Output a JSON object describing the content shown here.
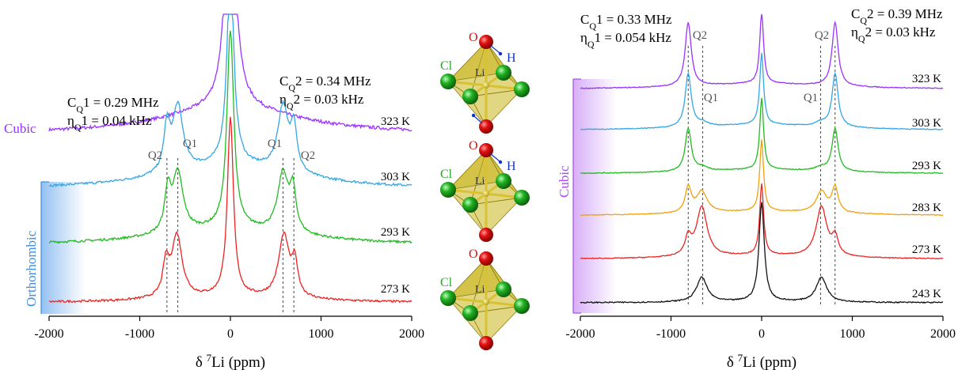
{
  "colors": {
    "323 K": "#9933ff",
    "303 K": "#33a6e6",
    "293 K": "#22bb22",
    "283 K": "#f2a10d",
    "273 K": "#ee2222",
    "243 K": "#111111",
    "orthorhombic": "#3c8ee6",
    "cubic": "#a64df0",
    "atom_O": "#dd1111",
    "atom_Cl": "#22aa22",
    "atom_H": "#1133cc"
  },
  "chart_data": [
    {
      "type": "line",
      "xlabel": "δ ⁷Li (ppm)",
      "xlim": [
        -2000,
        2000
      ],
      "xticks": [
        "-2000",
        "-1000",
        "0",
        "1000",
        "2000"
      ],
      "annotations": {
        "cq1": "CQ1 = 0.29 MHz",
        "eta1": "ηQ1 = 0.04 kHz",
        "cq2": "CQ2 = 0.34 MHz",
        "eta2": "ηQ2 = 0.03 kHz",
        "phase_cubic": "Cubic",
        "phase_ortho": "Orthorhombic",
        "q2_left": "Q2",
        "q1_left": "Q1",
        "q1_right": "Q1",
        "q2_right": "Q2"
      },
      "q_lines_ppm": [
        -700,
        -580,
        580,
        700
      ],
      "series": [
        {
          "name": "323 K",
          "center": 1.0,
          "baseline": 0.1,
          "q1_pos": 0,
          "q1_amp": 0,
          "q2_pos": 0,
          "q2_amp": 0
        },
        {
          "name": "303 K",
          "center": 1.0,
          "baseline": 0.12,
          "q1_pos": 580,
          "q1_amp": 0.33,
          "q2_pos": 700,
          "q2_amp": 0.22
        },
        {
          "name": "293 K",
          "center": 1.0,
          "baseline": 0.08,
          "q1_pos": 580,
          "q1_amp": 0.3,
          "q2_pos": 690,
          "q2_amp": 0.2
        },
        {
          "name": "273 K",
          "center": 1.0,
          "baseline": 0.03,
          "q1_pos": 590,
          "q1_amp": 0.35,
          "q2_pos": 710,
          "q2_amp": 0.18
        }
      ]
    },
    {
      "type": "line",
      "xlabel": "δ ⁷Li (ppm)",
      "xlim": [
        -2000,
        2000
      ],
      "xticks": [
        "-2000",
        "-1000",
        "0",
        "1000",
        "2000"
      ],
      "annotations": {
        "cq1": "CQ1 = 0.33 MHz",
        "eta1": "ηQ1 = 0.054 kHz",
        "cq2": "CQ2 = 0.39 MHz",
        "eta2": "ηQ2 = 0.03 kHz",
        "phase_cubic": "Cubic",
        "q2_left": "Q2",
        "q1_left": "Q1",
        "q1_right": "Q1",
        "q2_right": "Q2"
      },
      "q_lines_ppm": [
        -810,
        -650,
        650,
        810
      ],
      "series": [
        {
          "name": "323 K",
          "center": 1.0,
          "baseline": 0.08,
          "q1_pos": 0,
          "q1_amp": 0,
          "q2_pos": 810,
          "q2_amp": 0.9
        },
        {
          "name": "303 K",
          "center": 1.0,
          "baseline": 0.08,
          "q1_pos": 650,
          "q1_amp": 0.05,
          "q2_pos": 810,
          "q2_amp": 0.75
        },
        {
          "name": "293 K",
          "center": 1.0,
          "baseline": 0.06,
          "q1_pos": 650,
          "q1_amp": 0.05,
          "q2_pos": 810,
          "q2_amp": 0.6
        },
        {
          "name": "283 K",
          "center": 1.0,
          "baseline": 0.06,
          "q1_pos": 660,
          "q1_amp": 0.3,
          "q2_pos": 810,
          "q2_amp": 0.35
        },
        {
          "name": "273 K",
          "center": 1.0,
          "baseline": 0.05,
          "q1_pos": 660,
          "q1_amp": 0.7,
          "q2_pos": 810,
          "q2_amp": 0.25
        },
        {
          "name": "243 K",
          "center": 1.0,
          "baseline": 0.01,
          "q1_pos": 660,
          "q1_amp": 0.25,
          "q2_pos": 0,
          "q2_amp": 0
        }
      ]
    }
  ],
  "structures": [
    {
      "labels": {
        "o": "O",
        "h": "H",
        "cl": "Cl",
        "li": "Li"
      }
    },
    {
      "labels": {
        "o": "O",
        "h": "H",
        "cl": "Cl",
        "li": "Li"
      }
    },
    {
      "labels": {
        "o": "O",
        "cl": "Cl",
        "li": "Li"
      }
    }
  ]
}
